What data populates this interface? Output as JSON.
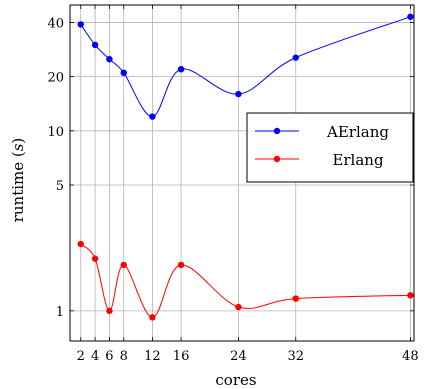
{
  "chart_data": {
    "type": "line",
    "xlabel": "cores",
    "ylabel_main": "runtime (",
    "ylabel_unit": "s",
    "ylabel_close": ")",
    "x_scale": "linear",
    "y_scale": "log",
    "xlim": [
      0.5,
      48.5
    ],
    "ylim": [
      0.68,
      50
    ],
    "grid": true,
    "legend_position": "right",
    "x": [
      2,
      4,
      6,
      8,
      12,
      16,
      24,
      32,
      48
    ],
    "xticks": [
      "2",
      "4",
      "6",
      "8",
      "12",
      "16",
      "24",
      "32",
      "48"
    ],
    "yticks": [
      {
        "value": 1,
        "label": "1"
      },
      {
        "value": 5,
        "label": "5"
      },
      {
        "value": 10,
        "label": "10"
      },
      {
        "value": 20,
        "label": "20"
      },
      {
        "value": 40,
        "label": "40"
      }
    ],
    "series": [
      {
        "name": "AErlang",
        "color": "#0000ff",
        "values": [
          39,
          30,
          25,
          21,
          12,
          22,
          16,
          25.5,
          43
        ]
      },
      {
        "name": "Erlang",
        "color": "#ff0000",
        "values": [
          2.35,
          1.95,
          1.0,
          1.8,
          0.92,
          1.8,
          1.05,
          1.17,
          1.22
        ]
      }
    ]
  }
}
